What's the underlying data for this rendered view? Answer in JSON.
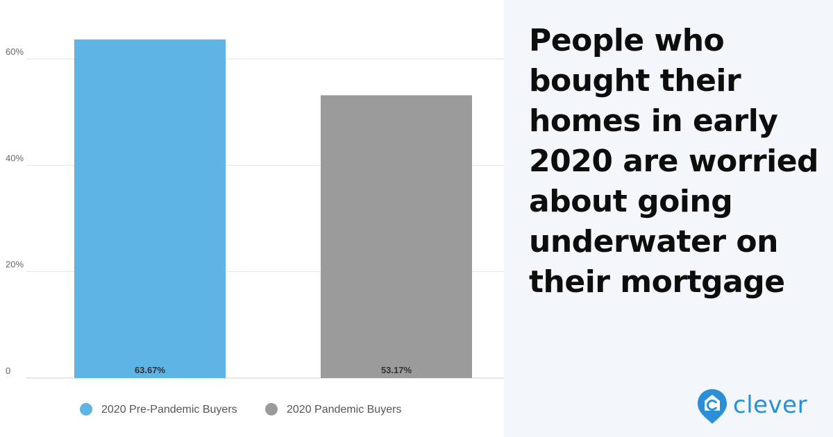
{
  "headline": "People who bought their homes in early 2020 are worried about going underwater on their mortgage",
  "brand": {
    "name": "clever",
    "icon": "clever-location-pin-icon",
    "color": "#2a8fd6"
  },
  "chart_data": {
    "type": "bar",
    "title": "",
    "xlabel": "",
    "ylabel": "",
    "categories": [
      "2020 Pre-Pandemic Buyers",
      "2020 Pandemic Buyers"
    ],
    "values": [
      63.67,
      53.17
    ],
    "value_labels": [
      "63.67%",
      "53.17%"
    ],
    "colors": [
      "#5eb4e4",
      "#9b9b9b"
    ],
    "ylim": [
      0,
      60
    ],
    "yticks": [
      0,
      20,
      40,
      60
    ],
    "ytick_labels": [
      "0",
      "20%",
      "40%",
      "60%"
    ],
    "grid": true,
    "legend": {
      "position": "bottom",
      "entries": [
        "2020 Pre-Pandemic Buyers",
        "2020 Pandemic Buyers"
      ]
    }
  }
}
